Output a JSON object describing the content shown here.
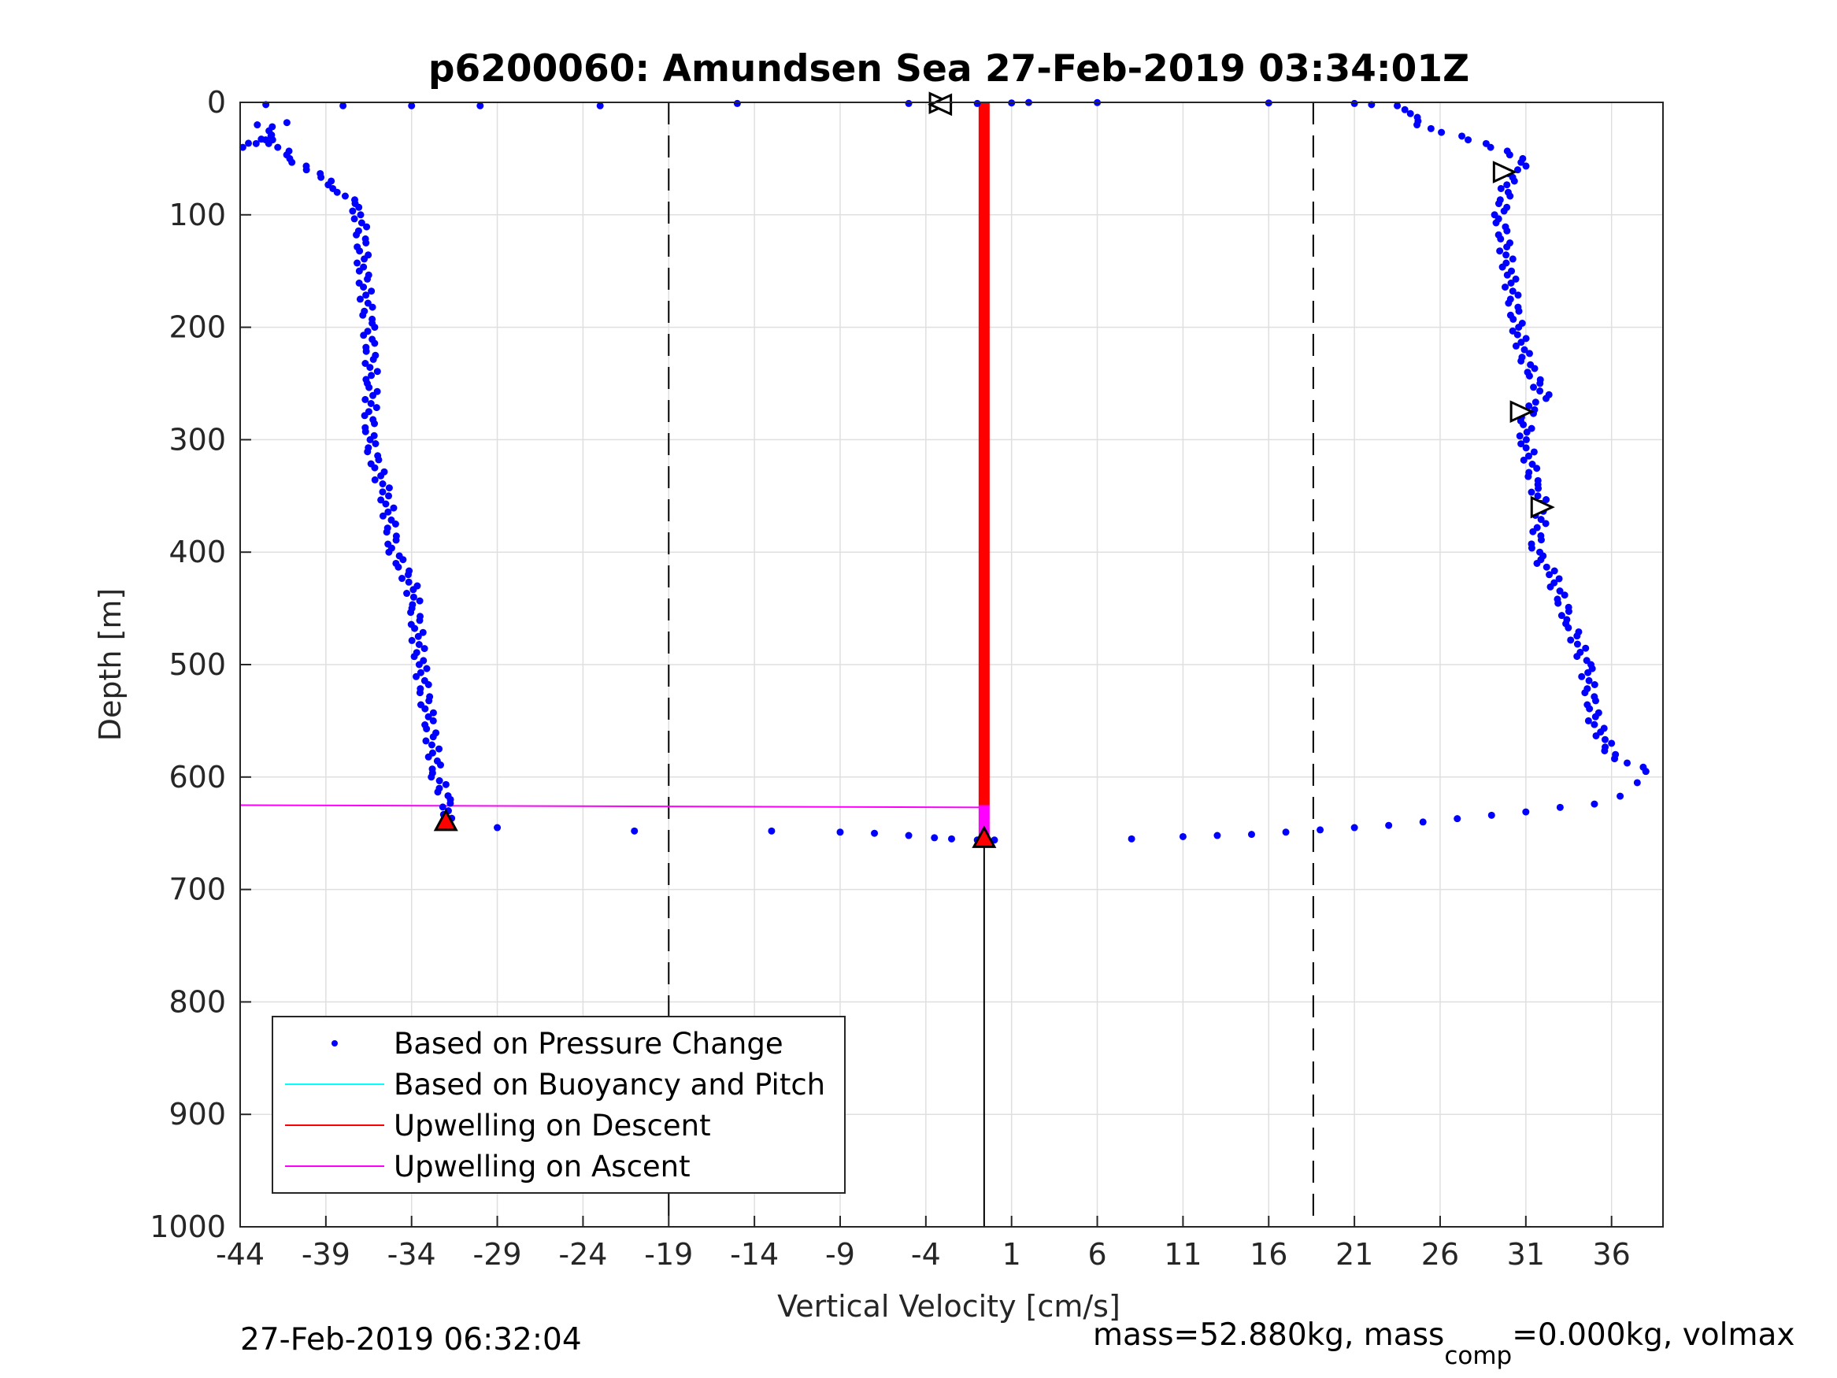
{
  "chart_data": {
    "type": "scatter",
    "title": "p6200060: Amundsen Sea 27-Feb-2019 03:34:01Z",
    "xlabel": "Vertical Velocity [cm/s]",
    "ylabel": "Depth [m]",
    "xlim": [
      -44,
      39
    ],
    "ylim": [
      0,
      1000
    ],
    "y_reversed": true,
    "grid": true,
    "x_ticks": [
      "-44",
      "-39",
      "-34",
      "-29",
      "-24",
      "-19",
      "-14",
      "-9",
      "-4",
      "1",
      "6",
      "11",
      "16",
      "21",
      "26",
      "31",
      "36"
    ],
    "x_tick_values": [
      -44,
      -39,
      -34,
      -29,
      -24,
      -19,
      -14,
      -9,
      -4,
      1,
      6,
      11,
      16,
      21,
      26,
      31,
      36
    ],
    "y_ticks": [
      "0",
      "100",
      "200",
      "300",
      "400",
      "500",
      "600",
      "700",
      "800",
      "900",
      "1000"
    ],
    "y_tick_values": [
      0,
      100,
      200,
      300,
      400,
      500,
      600,
      700,
      800,
      900,
      1000
    ],
    "legend_placement": "bottom-left",
    "colors": {
      "pressure": "#0000ff",
      "buoyancy": "#00ffff",
      "descent": "#ff0000",
      "ascent": "#ff00ff",
      "marker": "#000000"
    },
    "series": [
      {
        "name": "Based on Pressure Change",
        "descent": [
          [
            -42.5,
            2
          ],
          [
            -38,
            3
          ],
          [
            -34,
            3
          ],
          [
            -30,
            3
          ],
          [
            -23,
            3
          ],
          [
            -15,
            1
          ],
          [
            -5,
            1
          ],
          [
            -3,
            1
          ],
          [
            -1,
            1
          ],
          [
            1,
            0.5
          ]
        ],
        "descent_profile": [
          [
            -43,
            20
          ],
          [
            -41.5,
            18
          ],
          [
            -43.5,
            40
          ],
          [
            -42.5,
            30
          ],
          [
            -41,
            50
          ],
          [
            -40,
            60
          ],
          [
            -39,
            70
          ],
          [
            -38,
            80
          ],
          [
            -37.5,
            90
          ],
          [
            -37,
            100
          ],
          [
            -36.8,
            150
          ],
          [
            -36.5,
            200
          ],
          [
            -36.3,
            250
          ],
          [
            -36.5,
            300
          ],
          [
            -35.5,
            350
          ],
          [
            -35,
            400
          ],
          [
            -34,
            430
          ],
          [
            -33.8,
            450
          ],
          [
            -33.5,
            500
          ],
          [
            -33,
            550
          ],
          [
            -32.5,
            600
          ],
          [
            -32,
            620
          ],
          [
            -31.8,
            630
          ],
          [
            -31.8,
            640
          ]
        ],
        "bottom_transition": [
          [
            -29,
            645
          ],
          [
            -21,
            648
          ],
          [
            -13,
            648
          ],
          [
            -9,
            649
          ],
          [
            -7,
            650
          ],
          [
            -5,
            652
          ],
          [
            -3.5,
            654
          ],
          [
            -2.5,
            655
          ],
          [
            -1,
            656
          ],
          [
            0,
            656
          ]
        ],
        "ascent": [
          [
            8,
            655
          ],
          [
            11,
            653
          ],
          [
            13,
            652
          ],
          [
            15,
            651
          ],
          [
            17,
            649
          ],
          [
            19,
            647
          ],
          [
            21,
            645
          ],
          [
            23,
            643
          ],
          [
            25,
            640
          ],
          [
            27,
            637
          ],
          [
            29,
            634
          ],
          [
            31,
            631
          ],
          [
            33,
            627
          ],
          [
            35,
            624
          ],
          [
            36.5,
            617
          ],
          [
            37.5,
            605
          ],
          [
            38,
            595
          ]
        ],
        "ascent_profile": [
          [
            38,
            595
          ],
          [
            36,
            580
          ],
          [
            35,
            550
          ],
          [
            34.5,
            500
          ],
          [
            33.5,
            460
          ],
          [
            32.5,
            420
          ],
          [
            31.5,
            400
          ],
          [
            32,
            360
          ],
          [
            31.5,
            340
          ],
          [
            31,
            300
          ],
          [
            31,
            280
          ],
          [
            32,
            260
          ],
          [
            31,
            230
          ],
          [
            30.5,
            200
          ],
          [
            30,
            150
          ],
          [
            29.5,
            100
          ],
          [
            30,
            70
          ],
          [
            31,
            50
          ],
          [
            29,
            40
          ],
          [
            27,
            30
          ],
          [
            25,
            20
          ],
          [
            24,
            10
          ],
          [
            23.5,
            3
          ]
        ],
        "near_surface_ascent": [
          [
            22,
            2
          ],
          [
            21,
            1
          ],
          [
            16,
            0.5
          ],
          [
            6,
            0.2
          ],
          [
            2,
            0.1
          ]
        ]
      },
      {
        "name": "Based on Buoyancy and Pitch",
        "values": []
      },
      {
        "name": "Upwelling on Descent",
        "x": -0.6,
        "depth_range": [
          0,
          625
        ]
      },
      {
        "name": "Upwelling on Ascent",
        "x": -0.6,
        "depth_range": [
          625,
          656
        ],
        "lines": [
          [
            [
              -44,
              0
            ],
            [
              -0.6,
              0
            ]
          ],
          [
            [
              -44,
              625
            ],
            [
              -0.6,
              627
            ]
          ]
        ]
      }
    ],
    "reference_lines": {
      "dashed_x": [
        -19,
        18.6
      ],
      "solid_vertical": {
        "x": -0.6,
        "from_depth": 656,
        "to_depth": 1000
      }
    },
    "markers": [
      {
        "type": "triangle-right",
        "x": -3.3,
        "y": 0.5
      },
      {
        "type": "triangle-left",
        "x": -3.0,
        "y": 2
      },
      {
        "type": "triangle-right",
        "x": 29.6,
        "y": 62
      },
      {
        "type": "triangle-right",
        "x": 30.6,
        "y": 275
      },
      {
        "type": "triangle-right",
        "x": 31.8,
        "y": 360
      },
      {
        "type": "triangle-up-red",
        "x": -32,
        "y": 640
      },
      {
        "type": "triangle-up-red",
        "x": -0.6,
        "y": 655
      }
    ]
  },
  "footer": {
    "timestamp": "27-Feb-2019 06:32:04",
    "mass_text_1": "mass=52.880kg, mass",
    "mass_sub": "comp",
    "mass_text_2": "=0.000kg, volmax"
  }
}
